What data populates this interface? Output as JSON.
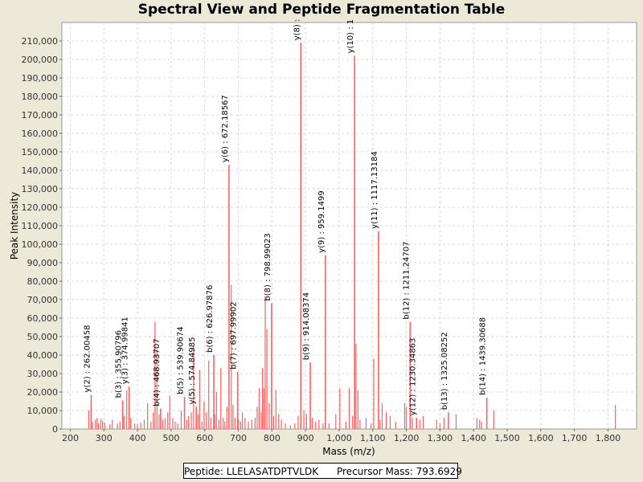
{
  "chart_data": {
    "type": "bar",
    "title": "Spectral View and Peptide Fragmentation Table",
    "xlabel": "Mass (m/z)",
    "ylabel": "Peak Intensity",
    "xlim": [
      175,
      1885
    ],
    "ylim": [
      0,
      220000
    ],
    "x_ticks": [
      200,
      300,
      400,
      500,
      600,
      700,
      800,
      900,
      1000,
      1100,
      1200,
      1300,
      1400,
      1500,
      1600,
      1700,
      1800
    ],
    "x_tick_labels": [
      "200",
      "300",
      "400",
      "500",
      "600",
      "700",
      "800",
      "900",
      "1,000",
      "1,100",
      "1,200",
      "1,300",
      "1,400",
      "1,500",
      "1,600",
      "1,700",
      "1,800"
    ],
    "y_ticks": [
      0,
      10000,
      20000,
      30000,
      40000,
      50000,
      60000,
      70000,
      80000,
      90000,
      100000,
      110000,
      120000,
      130000,
      140000,
      150000,
      160000,
      170000,
      180000,
      190000,
      200000,
      210000
    ],
    "y_tick_labels": [
      "0",
      "10,000",
      "20,000",
      "30,000",
      "40,000",
      "50,000",
      "60,000",
      "70,000",
      "80,000",
      "90,000",
      "100,000",
      "110,000",
      "120,000",
      "130,000",
      "140,000",
      "150,000",
      "160,000",
      "170,000",
      "180,000",
      "190,000",
      "200,000",
      "210,000"
    ],
    "grid": true,
    "bar_color": "#ff6060",
    "annotated_peaks": [
      {
        "mz": 262.00458,
        "intensity": 18500,
        "label": "y(2) : 262.00458"
      },
      {
        "mz": 355.90796,
        "intensity": 15500,
        "label": "b(3) : 355.90796"
      },
      {
        "mz": 374.99841,
        "intensity": 23000,
        "label": "y(3) : 374.99841"
      },
      {
        "mz": 468.93707,
        "intensity": 11000,
        "label": "b(4) : 468.93707"
      },
      {
        "mz": 539.90674,
        "intensity": 17500,
        "label": "b(5) : 539.90674"
      },
      {
        "mz": 574.84985,
        "intensity": 12000,
        "label": "y(5) : 574.84985"
      },
      {
        "mz": 626.97876,
        "intensity": 40000,
        "label": "b(6) : 626.97876"
      },
      {
        "mz": 672.18567,
        "intensity": 143000,
        "label": "y(6) : 672.18567"
      },
      {
        "mz": 697.99902,
        "intensity": 31000,
        "label": "b(7) : 697.99902"
      },
      {
        "mz": 798.99023,
        "intensity": 68000,
        "label": "b(8) : 798.99023"
      },
      {
        "mz": 886.0,
        "intensity": 209000,
        "label": "y(8) :"
      },
      {
        "mz": 914.08374,
        "intensity": 36000,
        "label": "b(9) : 914.08374"
      },
      {
        "mz": 959.1499,
        "intensity": 94000,
        "label": "y(9) : 959.1499"
      },
      {
        "mz": 1046.0,
        "intensity": 202000,
        "label": "y(10) : 1"
      },
      {
        "mz": 1117.13184,
        "intensity": 107000,
        "label": "y(11) : 1117.13184"
      },
      {
        "mz": 1211.24707,
        "intensity": 58000,
        "label": "b(12) : 1211.24707"
      },
      {
        "mz": 1230.34863,
        "intensity": 6000,
        "label": "y(12) : 1230.34863"
      },
      {
        "mz": 1325.08252,
        "intensity": 9000,
        "label": "b(13) : 1325.08252"
      },
      {
        "mz": 1439.30688,
        "intensity": 17000,
        "label": "b(14) : 1439.30688"
      }
    ],
    "other_peaks": [
      [
        255,
        10000
      ],
      [
        266,
        4000
      ],
      [
        275,
        5000
      ],
      [
        280,
        6000
      ],
      [
        284,
        3000
      ],
      [
        291,
        5500
      ],
      [
        296,
        4500
      ],
      [
        302,
        3500
      ],
      [
        318,
        2500
      ],
      [
        325,
        5000
      ],
      [
        340,
        3000
      ],
      [
        348,
        4000
      ],
      [
        360,
        7000
      ],
      [
        368,
        21000
      ],
      [
        380,
        6000
      ],
      [
        392,
        3000
      ],
      [
        400,
        2500
      ],
      [
        410,
        3500
      ],
      [
        420,
        5000
      ],
      [
        430,
        14000
      ],
      [
        440,
        4000
      ],
      [
        447,
        9000
      ],
      [
        452,
        58000
      ],
      [
        458,
        43000
      ],
      [
        464,
        8000
      ],
      [
        475,
        5000
      ],
      [
        482,
        6000
      ],
      [
        490,
        9000
      ],
      [
        496,
        18000
      ],
      [
        505,
        6000
      ],
      [
        512,
        4000
      ],
      [
        520,
        3000
      ],
      [
        530,
        10000
      ],
      [
        546,
        5000
      ],
      [
        552,
        7000
      ],
      [
        560,
        9000
      ],
      [
        567,
        45000
      ],
      [
        580,
        8000
      ],
      [
        585,
        32000
      ],
      [
        592,
        4000
      ],
      [
        598,
        15000
      ],
      [
        605,
        9000
      ],
      [
        612,
        37000
      ],
      [
        618,
        6000
      ],
      [
        630,
        8000
      ],
      [
        635,
        20000
      ],
      [
        642,
        5000
      ],
      [
        648,
        33000
      ],
      [
        655,
        6000
      ],
      [
        660,
        4000
      ],
      [
        666,
        12000
      ],
      [
        679,
        78000
      ],
      [
        684,
        13000
      ],
      [
        690,
        6000
      ],
      [
        700,
        5000
      ],
      [
        707,
        4000
      ],
      [
        712,
        9000
      ],
      [
        720,
        6000
      ],
      [
        730,
        4000
      ],
      [
        740,
        5000
      ],
      [
        750,
        6000
      ],
      [
        756,
        12000
      ],
      [
        762,
        22000
      ],
      [
        768,
        9000
      ],
      [
        772,
        33000
      ],
      [
        776,
        22000
      ],
      [
        780,
        72000
      ],
      [
        785,
        54000
      ],
      [
        792,
        14000
      ],
      [
        805,
        7000
      ],
      [
        812,
        21000
      ],
      [
        820,
        8000
      ],
      [
        828,
        5000
      ],
      [
        840,
        3000
      ],
      [
        855,
        2000
      ],
      [
        868,
        3000
      ],
      [
        878,
        7000
      ],
      [
        895,
        10000
      ],
      [
        903,
        8000
      ],
      [
        920,
        6000
      ],
      [
        930,
        4000
      ],
      [
        940,
        5000
      ],
      [
        952,
        3000
      ],
      [
        970,
        3000
      ],
      [
        990,
        8000
      ],
      [
        1002,
        22000
      ],
      [
        1020,
        4000
      ],
      [
        1030,
        22000
      ],
      [
        1040,
        7000
      ],
      [
        1050,
        46000
      ],
      [
        1056,
        21000
      ],
      [
        1062,
        5000
      ],
      [
        1080,
        6000
      ],
      [
        1095,
        3000
      ],
      [
        1103,
        38000
      ],
      [
        1122,
        5000
      ],
      [
        1128,
        14000
      ],
      [
        1140,
        9000
      ],
      [
        1152,
        7000
      ],
      [
        1168,
        4000
      ],
      [
        1195,
        14000
      ],
      [
        1200,
        12000
      ],
      [
        1218,
        6000
      ],
      [
        1240,
        5000
      ],
      [
        1250,
        7000
      ],
      [
        1290,
        5000
      ],
      [
        1300,
        3000
      ],
      [
        1312,
        6000
      ],
      [
        1348,
        8000
      ],
      [
        1410,
        6000
      ],
      [
        1418,
        5000
      ],
      [
        1424,
        4000
      ],
      [
        1460,
        10000
      ],
      [
        1822,
        13000
      ]
    ]
  },
  "footer": {
    "peptide": "Peptide: LLELASATDPTVLDK",
    "precursor": "Precursor Mass: 793.6929"
  }
}
